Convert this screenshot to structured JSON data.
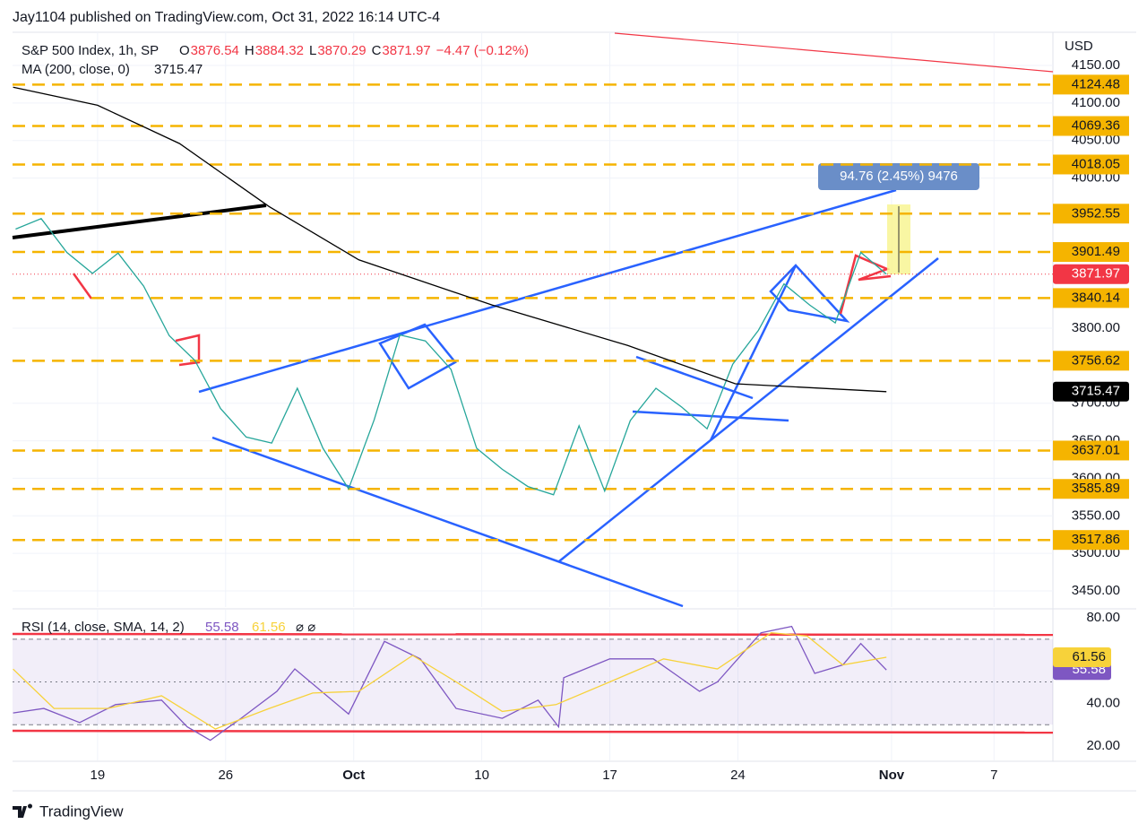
{
  "header": {
    "publisher": "Jay1104 published on TradingView.com, Oct 31, 2022 16:14 UTC-4"
  },
  "chart_data": [
    {
      "type": "line",
      "title": "S&P 500 Index, 1h, SP",
      "ohlc": [
        {
          "label": "O",
          "value": "3876.54"
        },
        {
          "label": "H",
          "value": "3884.32"
        },
        {
          "label": "L",
          "value": "3870.29"
        },
        {
          "label": "C",
          "value": "3871.97"
        }
      ],
      "change": "−4.47 (−0.12%)",
      "indicator": "MA (200, close, 0)",
      "indicator_value": "3715.47",
      "currency": "USD",
      "xlim": [
        1.68,
        42.3
      ],
      "xticks": [
        {
          "value": 5,
          "label": "19"
        },
        {
          "value": 10,
          "label": "26"
        },
        {
          "value": 15,
          "label": "Oct"
        },
        {
          "value": 20,
          "label": "10"
        },
        {
          "value": 25,
          "label": "17"
        },
        {
          "value": 30,
          "label": "24"
        },
        {
          "value": 36,
          "label": "Nov"
        },
        {
          "value": 40,
          "label": "7"
        }
      ],
      "ylim": [
        3428.5,
        4194.2
      ],
      "yticks": [
        {
          "value": 4150,
          "label": "4150.00"
        },
        {
          "value": 4100,
          "label": "4100.00"
        },
        {
          "value": 4050,
          "label": "4050.00"
        },
        {
          "value": 4000,
          "label": "4000.00"
        },
        {
          "value": 3800,
          "label": "3800.00"
        },
        {
          "value": 3700,
          "label": "3700.00"
        },
        {
          "value": 3650,
          "label": "3650.00"
        },
        {
          "value": 3600,
          "label": "3600.00"
        },
        {
          "value": 3550,
          "label": "3550.00"
        },
        {
          "value": 3500,
          "label": "3500.00"
        },
        {
          "value": 3450,
          "label": "3450.00"
        }
      ],
      "grid": true,
      "series": [
        {
          "name": "Close",
          "color": "#26a69a",
          "x": [
            1.8,
            2.8,
            3.8,
            4.8,
            5.8,
            6.8,
            7.8,
            8.8,
            9.8,
            10.8,
            11.8,
            12.8,
            13.8,
            14.8,
            15.8,
            16.8,
            17.8,
            18.8,
            19.8,
            20.8,
            21.8,
            22.8,
            23.8,
            24.8,
            25.8,
            26.8,
            27.8,
            28.8,
            29.8,
            30.8,
            31.8,
            32.8,
            33.8,
            34.8,
            35.8
          ],
          "values": [
            3932,
            3946,
            3901,
            3873,
            3900,
            3856,
            3790,
            3757,
            3693,
            3655,
            3647,
            3720,
            3640,
            3586,
            3678,
            3791,
            3783,
            3745,
            3640,
            3612,
            3589,
            3578,
            3670,
            3583,
            3677,
            3720,
            3695,
            3666,
            3752,
            3797,
            3859,
            3831,
            3807,
            3901,
            3872
          ]
        },
        {
          "name": "MA (200, close, 0)",
          "color": "#000000",
          "x": [
            1.7,
            5.0,
            8.2,
            11.7,
            15.2,
            20.4,
            25.7,
            29.9,
            35.8
          ],
          "values": [
            4121,
            4097,
            4046,
            3962,
            3891,
            3831,
            3777,
            3726,
            3715.47
          ]
        }
      ],
      "levels": [
        {
          "value": 4124.48,
          "label": "4124.48"
        },
        {
          "value": 4069.36,
          "label": "4069.36"
        },
        {
          "value": 4018.05,
          "label": "4018.05"
        },
        {
          "value": 3952.55,
          "label": "3952.55"
        },
        {
          "value": 3901.49,
          "label": "3901.49"
        },
        {
          "value": 3840.14,
          "label": "3840.14"
        },
        {
          "value": 3756.62,
          "label": "3756.62"
        },
        {
          "value": 3637.01,
          "label": "3637.01"
        },
        {
          "value": 3585.89,
          "label": "3585.89"
        },
        {
          "value": 3517.86,
          "label": "3517.86"
        }
      ],
      "level_color": "#f5b400",
      "last_price": {
        "value": 3871.97,
        "label": "3871.97",
        "color": "#f23645"
      },
      "ma_price": {
        "value": 3715.47,
        "label": "3715.47",
        "color": "#000000"
      },
      "measure": "94.76 (2.45%) 9476"
    },
    {
      "type": "line",
      "title": "RSI (14, close, SMA, 14, 2)",
      "ylim": [
        13.3,
        83.8
      ],
      "yticks": [
        {
          "value": 80,
          "label": "80.00"
        },
        {
          "value": 40,
          "label": "40.00"
        },
        {
          "value": 20,
          "label": "20.00"
        }
      ],
      "bands": [
        30,
        50,
        70
      ],
      "series": [
        {
          "name": "RSI",
          "color": "#7e57c2",
          "value_label": "55.58",
          "x": [
            1.7,
            2.9,
            4.3,
            5.7,
            7.5,
            8.5,
            9.4,
            10.6,
            12.0,
            12.7,
            14.8,
            16.2,
            17.6,
            19.0,
            20.8,
            22.2,
            23.0,
            23.2,
            25.0,
            26.7,
            28.5,
            29.2,
            30.9,
            32.1,
            33.0,
            34.1,
            34.8,
            35.8
          ],
          "values": [
            35.5,
            37.6,
            31,
            39.4,
            41.5,
            29,
            22.7,
            33,
            45.6,
            56.1,
            35,
            69,
            60.8,
            37.6,
            33,
            41.5,
            29,
            52,
            60.8,
            60.8,
            45.6,
            50,
            73,
            76,
            54,
            58,
            68,
            55.58
          ]
        },
        {
          "name": "RSI-based MA",
          "color": "#f7d23a",
          "value_label": "61.56",
          "x": [
            1.7,
            3.3,
            5.4,
            7.5,
            9.6,
            11.7,
            13.4,
            15.2,
            17.3,
            19.0,
            20.8,
            22.9,
            25.0,
            27.1,
            29.2,
            31.3,
            32.7,
            34.1,
            35.8
          ],
          "values": [
            56,
            37.6,
            37.6,
            43.5,
            28,
            37.6,
            44.8,
            45.6,
            62.4,
            50,
            36.2,
            39.4,
            50,
            60.8,
            56.1,
            73,
            71.5,
            58,
            61.56
          ]
        }
      ]
    }
  ],
  "footer": {
    "brand": "TradingView"
  }
}
